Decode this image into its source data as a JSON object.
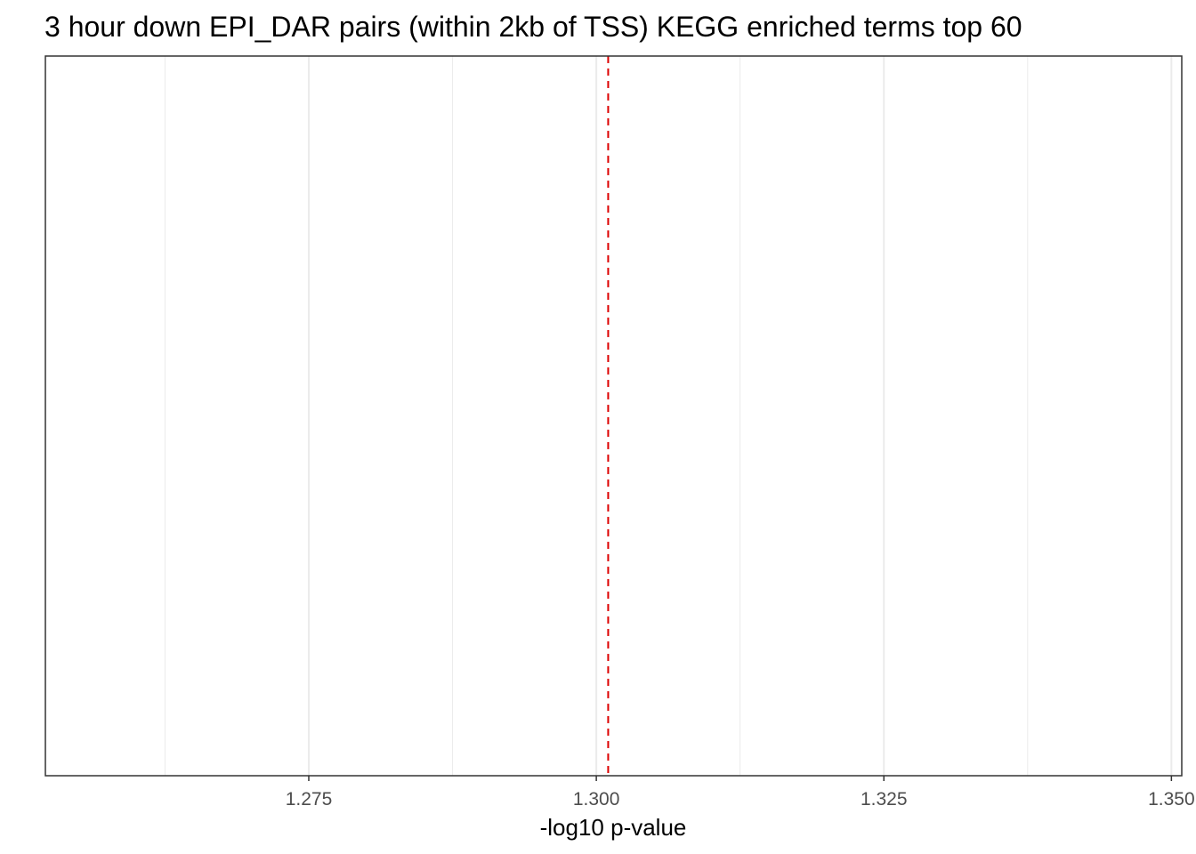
{
  "chart_data": {
    "type": "bar",
    "title": "3 hour down EPI_DAR pairs (within 2kb of TSS) KEGG enriched terms top 60",
    "xlabel": "-log10 p-value",
    "ylabel": "",
    "categories": [],
    "values": [],
    "orientation": "horizontal",
    "xlim": [
      1.2521,
      1.3509
    ],
    "x_ticks": [
      {
        "value": 1.275,
        "label": "1.275"
      },
      {
        "value": 1.3,
        "label": "1.300"
      },
      {
        "value": 1.325,
        "label": "1.325"
      },
      {
        "value": 1.35,
        "label": "1.350"
      }
    ],
    "x_minor_ticks": [
      1.2625,
      1.2875,
      1.3125,
      1.3375
    ],
    "reference_line": {
      "value": 1.30103,
      "color": "#dd0000",
      "style": "dashed"
    },
    "grid": "vertical",
    "legend": "none",
    "colors": {
      "grid": "#ebebeb",
      "panel_border": "#333333",
      "tick_label": "#4d4d4d",
      "reference": "#dd0000"
    }
  }
}
